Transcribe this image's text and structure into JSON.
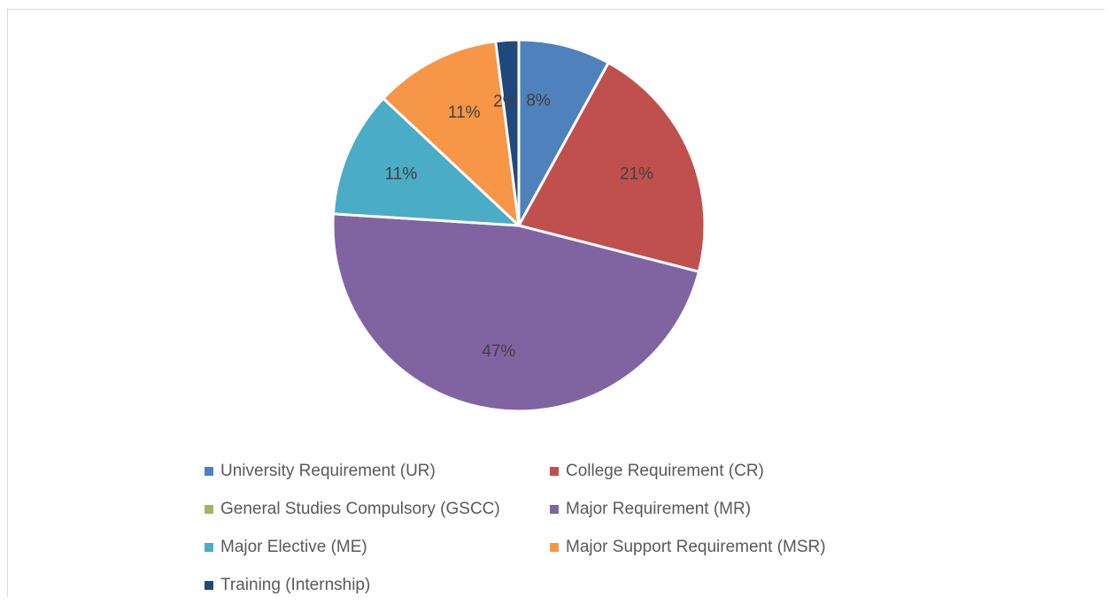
{
  "chart_data": {
    "type": "pie",
    "title": "",
    "legend_position": "bottom",
    "slices": [
      {
        "name": "University Requirement (UR)",
        "value": 8,
        "label": "8%",
        "color": "#4f81bd"
      },
      {
        "name": "College Requirement (CR)",
        "value": 21,
        "label": "21%",
        "color": "#c0504d"
      },
      {
        "name": "General Studies Compulsory (GSCC)",
        "value": 0,
        "label": "",
        "color": "#9bbb59"
      },
      {
        "name": "Major Requirement (MR)",
        "value": 47,
        "label": "47%",
        "color": "#8064a2"
      },
      {
        "name": "Major Elective (ME)",
        "value": 11,
        "label": "11%",
        "color": "#4bacc6"
      },
      {
        "name": "Major Support Requirement (MSR)",
        "value": 11,
        "label": "11%",
        "color": "#f79646"
      },
      {
        "name": "Training (Internship)",
        "value": 2,
        "label": "2%",
        "color": "#1f497d"
      }
    ]
  }
}
